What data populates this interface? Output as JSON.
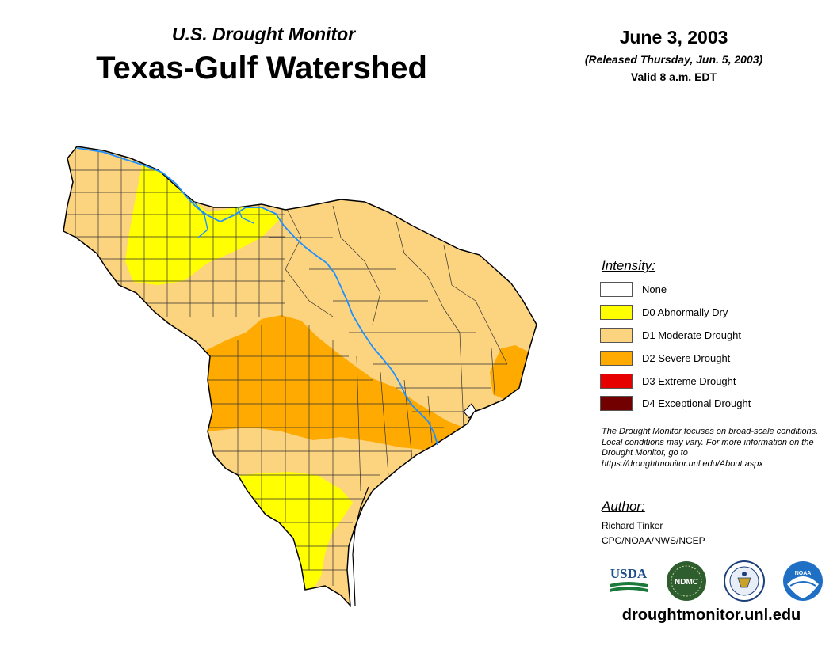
{
  "header": {
    "subtitle": "U.S. Drought Monitor",
    "title": "Texas-Gulf Watershed",
    "date": "June 3, 2003",
    "released": "(Released Thursday, Jun. 5, 2003)",
    "valid": "Valid 8 a.m. EDT"
  },
  "legend": {
    "title": "Intensity:",
    "items": [
      {
        "label": "None",
        "color": "#ffffff"
      },
      {
        "label": "D0 Abnormally Dry",
        "color": "#ffff00"
      },
      {
        "label": "D1 Moderate Drought",
        "color": "#fcd37f"
      },
      {
        "label": "D2 Severe Drought",
        "color": "#ffaa00"
      },
      {
        "label": "D3 Extreme Drought",
        "color": "#e60000"
      },
      {
        "label": "D4 Exceptional Drought",
        "color": "#730000"
      }
    ]
  },
  "note": "The Drought Monitor focuses on broad-scale conditions. Local conditions may vary. For more information on the Drought Monitor, go to https://droughtmonitor.unl.edu/About.aspx",
  "author": {
    "title": "Author:",
    "name": "Richard Tinker",
    "org": "CPC/NOAA/NWS/NCEP"
  },
  "logos": {
    "usda": "USDA",
    "ndmc": "NDMC",
    "noaa": "NOAA"
  },
  "footer": {
    "url": "droughtmonitor.unl.edu"
  },
  "colors": {
    "river": "#1e90ff",
    "county_line": "#333333",
    "outline": "#000000"
  }
}
